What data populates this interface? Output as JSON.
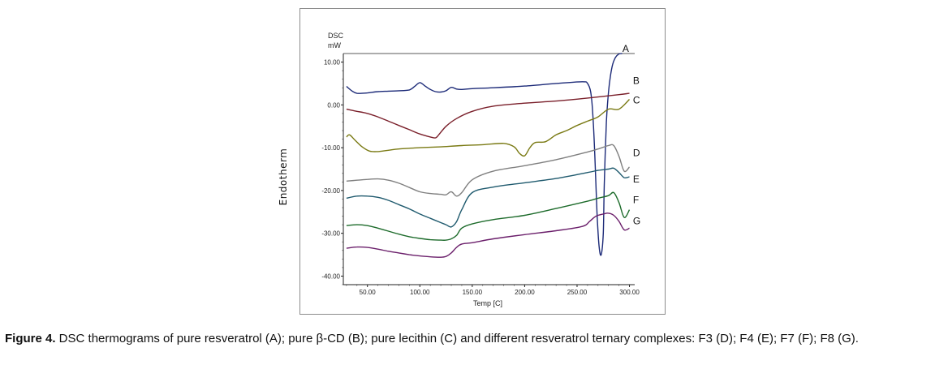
{
  "chart_data": {
    "type": "line",
    "title": "",
    "y_outer_label": "Endotherm",
    "y_unit_line1": "DSC",
    "y_unit_line2": "mW",
    "xlabel": "Temp  [C]",
    "xlim": [
      27,
      305
    ],
    "ylim": [
      -42,
      12
    ],
    "x_ticks": [
      50,
      100,
      150,
      200,
      250,
      300
    ],
    "x_tick_labels": [
      "50.00",
      "100.00",
      "150.00",
      "200.00",
      "250.00",
      "300.00"
    ],
    "y_ticks": [
      10,
      0,
      -10,
      -20,
      -30,
      -40
    ],
    "y_tick_labels": [
      "10.00",
      "0.00",
      "-10.00",
      "-20.00",
      "-30.00",
      "-40.00"
    ],
    "series": [
      {
        "name": "A",
        "color": "#1c2a78",
        "x": [
          30,
          35,
          40,
          50,
          60,
          70,
          80,
          90,
          95,
          100,
          105,
          110,
          115,
          120,
          125,
          130,
          135,
          140,
          150,
          170,
          200,
          230,
          255,
          260,
          263,
          265,
          267,
          269,
          271,
          273,
          275,
          276,
          278,
          280,
          282,
          284,
          286,
          288,
          290,
          293
        ],
        "y": [
          4.3,
          3.3,
          2.7,
          2.8,
          3.1,
          3.2,
          3.3,
          3.5,
          4.3,
          5.2,
          4.4,
          3.6,
          3.1,
          3.0,
          3.3,
          4.1,
          3.7,
          3.6,
          3.8,
          4.0,
          4.4,
          5.0,
          5.4,
          5.0,
          3.0,
          -2.0,
          -12.0,
          -25.0,
          -33.0,
          -35.0,
          -30.0,
          -18.0,
          -4.0,
          3.0,
          7.0,
          9.5,
          10.8,
          11.5,
          11.9,
          12.0
        ]
      },
      {
        "name": "B",
        "color": "#7a1f2a",
        "x": [
          30,
          40,
          50,
          60,
          70,
          80,
          90,
          100,
          110,
          115,
          118,
          125,
          135,
          150,
          170,
          200,
          230,
          260,
          290,
          300
        ],
        "y": [
          -1.0,
          -1.5,
          -2.0,
          -2.8,
          -3.8,
          -4.8,
          -5.8,
          -6.8,
          -7.5,
          -7.7,
          -7.0,
          -5.0,
          -3.2,
          -1.5,
          -0.3,
          0.4,
          0.9,
          1.6,
          2.4,
          2.7
        ]
      },
      {
        "name": "C",
        "color": "#7a7a14",
        "x": [
          30,
          33,
          38,
          45,
          52,
          60,
          70,
          80,
          100,
          120,
          140,
          160,
          180,
          190,
          195,
          200,
          205,
          210,
          220,
          230,
          240,
          250,
          260,
          270,
          280,
          290,
          300
        ],
        "y": [
          -7.5,
          -7.0,
          -8.2,
          -9.8,
          -10.8,
          -10.9,
          -10.6,
          -10.3,
          -10.0,
          -9.8,
          -9.5,
          -9.3,
          -9.0,
          -9.8,
          -11.3,
          -11.9,
          -10.0,
          -8.8,
          -8.6,
          -7.0,
          -6.0,
          -4.8,
          -3.8,
          -2.8,
          -1.0,
          -1.0,
          1.3
        ]
      },
      {
        "name": "D",
        "color": "#7f7f7f",
        "x": [
          30,
          40,
          50,
          60,
          70,
          80,
          90,
          100,
          110,
          120,
          125,
          130,
          135,
          140,
          150,
          170,
          200,
          230,
          260,
          270,
          280,
          285,
          290,
          295,
          300
        ],
        "y": [
          -17.8,
          -17.6,
          -17.4,
          -17.3,
          -17.6,
          -18.3,
          -19.3,
          -20.3,
          -20.7,
          -20.9,
          -21.0,
          -20.3,
          -21.3,
          -20.5,
          -17.5,
          -15.5,
          -14.2,
          -12.8,
          -11.0,
          -10.3,
          -9.5,
          -9.5,
          -12.0,
          -15.5,
          -14.5
        ]
      },
      {
        "name": "E",
        "color": "#1f5a6e",
        "x": [
          30,
          40,
          50,
          60,
          70,
          80,
          90,
          100,
          110,
          120,
          125,
          130,
          135,
          140,
          150,
          170,
          200,
          230,
          260,
          270,
          280,
          285,
          290,
          295,
          300
        ],
        "y": [
          -21.8,
          -21.3,
          -21.3,
          -21.6,
          -22.3,
          -23.3,
          -24.3,
          -25.5,
          -26.5,
          -27.5,
          -28.0,
          -28.5,
          -27.3,
          -24.5,
          -20.5,
          -19.2,
          -18.2,
          -17.2,
          -15.8,
          -15.3,
          -15.0,
          -14.8,
          -15.8,
          -17.0,
          -16.8
        ]
      },
      {
        "name": "F",
        "color": "#1d6b2b",
        "x": [
          30,
          40,
          50,
          60,
          70,
          80,
          90,
          100,
          110,
          120,
          125,
          130,
          135,
          140,
          150,
          170,
          200,
          230,
          260,
          270,
          280,
          285,
          290,
          295,
          300
        ],
        "y": [
          -28.2,
          -28.0,
          -28.2,
          -28.8,
          -29.5,
          -30.2,
          -30.8,
          -31.2,
          -31.5,
          -31.6,
          -31.6,
          -31.3,
          -30.5,
          -28.8,
          -27.8,
          -26.8,
          -25.8,
          -24.2,
          -22.5,
          -21.8,
          -21.2,
          -20.5,
          -22.8,
          -26.3,
          -24.5
        ]
      },
      {
        "name": "G",
        "color": "#6b1f6b",
        "x": [
          30,
          40,
          50,
          60,
          70,
          80,
          90,
          100,
          110,
          120,
          125,
          130,
          135,
          140,
          150,
          170,
          200,
          230,
          255,
          262,
          268,
          275,
          280,
          285,
          290,
          295,
          300
        ],
        "y": [
          -33.5,
          -33.2,
          -33.3,
          -33.7,
          -34.2,
          -34.6,
          -35.0,
          -35.3,
          -35.5,
          -35.6,
          -35.4,
          -34.6,
          -33.3,
          -32.5,
          -32.2,
          -31.3,
          -30.3,
          -29.4,
          -28.4,
          -27.2,
          -26.0,
          -25.5,
          -25.3,
          -25.8,
          -27.2,
          -29.2,
          -28.8
        ]
      }
    ],
    "label_anchors": [
      {
        "name": "A",
        "x": 291,
        "y": 12
      },
      {
        "name": "B",
        "x": 301,
        "y": 4.5
      },
      {
        "name": "C",
        "x": 301,
        "y": 0
      },
      {
        "name": "D",
        "x": 301,
        "y": -12.3
      },
      {
        "name": "E",
        "x": 301,
        "y": -18.5
      },
      {
        "name": "F",
        "x": 301,
        "y": -23.3
      },
      {
        "name": "G",
        "x": 301,
        "y": -28.3
      }
    ]
  },
  "caption": {
    "label": "Figure 4.",
    "text": " DSC thermograms of pure resveratrol (A); pure β-CD (B); pure lecithin (C) and different resveratrol ternary complexes: F3 (D); F4 (E); F7 (F); F8 (G)."
  }
}
